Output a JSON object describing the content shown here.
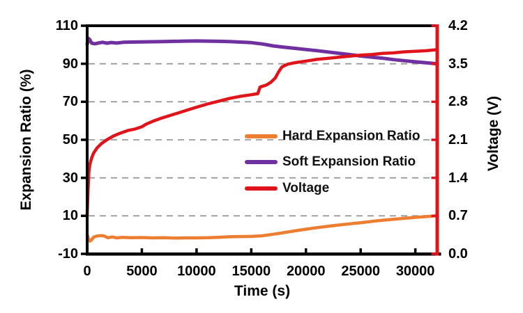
{
  "chart_data": {
    "type": "line",
    "title": "",
    "xlabel": "Time (s)",
    "ylabel_left": "Expansion Ratio (%)",
    "ylabel_right": "Voltage (V)",
    "xlim": [
      0,
      32000
    ],
    "ylim_left": [
      -10,
      110
    ],
    "ylim_right": [
      0,
      4.2
    ],
    "grid": "dashed horizontal",
    "grid_values_left": [
      90,
      70,
      50,
      30,
      10
    ],
    "x_tick_values": [
      0,
      5000,
      10000,
      15000,
      20000,
      25000,
      30000
    ],
    "x_tick_labels": [
      "0",
      "5000",
      "10000",
      "15000",
      "20000",
      "25000",
      "30000"
    ],
    "left_tick_values": [
      110,
      90,
      70,
      50,
      30,
      10,
      -10
    ],
    "left_tick_labels": [
      "110",
      "90",
      "70",
      "50",
      "30",
      "10",
      "-10"
    ],
    "right_tick_values": [
      4.2,
      3.5,
      2.8,
      2.1,
      1.4,
      0.7,
      0.0
    ],
    "right_tick_labels": [
      "4.2",
      "3.5",
      "2.8",
      "2.1",
      "1.4",
      "0.7",
      "0.0"
    ],
    "legend_position": "center-right inside plot",
    "colors": {
      "hard": "#ED7D31",
      "soft": "#7030A0",
      "voltage": "#DF151B",
      "grid": "#999999",
      "axis_left_bottom_top": "#000000",
      "axis_right": "#DF151B",
      "text": "#000000",
      "background": "#FFFFFF"
    },
    "series": [
      {
        "name": "Hard Expansion Ratio",
        "axis": "left",
        "unit": "%",
        "color": "#ED7D31",
        "points": [
          [
            0,
            0.2
          ],
          [
            150,
            -2.6
          ],
          [
            250,
            -3.3
          ],
          [
            400,
            -2.6
          ],
          [
            600,
            -1.2
          ],
          [
            900,
            -0.6
          ],
          [
            1200,
            -0.4
          ],
          [
            1500,
            -0.5
          ],
          [
            1900,
            -1.5
          ],
          [
            2300,
            -1.1
          ],
          [
            2700,
            -1.6
          ],
          [
            3200,
            -1.3
          ],
          [
            4000,
            -1.5
          ],
          [
            5000,
            -1.4
          ],
          [
            6000,
            -1.6
          ],
          [
            7000,
            -1.5
          ],
          [
            8000,
            -1.7
          ],
          [
            9000,
            -1.6
          ],
          [
            10000,
            -1.6
          ],
          [
            11000,
            -1.5
          ],
          [
            12000,
            -1.3
          ],
          [
            13000,
            -1.0
          ],
          [
            14000,
            -0.9
          ],
          [
            15000,
            -0.8
          ],
          [
            16000,
            -0.5
          ],
          [
            17000,
            0.3
          ],
          [
            18000,
            1.2
          ],
          [
            19000,
            2.1
          ],
          [
            20000,
            3.0
          ],
          [
            21000,
            3.8
          ],
          [
            22000,
            4.5
          ],
          [
            23000,
            5.2
          ],
          [
            24000,
            5.8
          ],
          [
            25000,
            6.4
          ],
          [
            26000,
            7.1
          ],
          [
            27000,
            7.7
          ],
          [
            28000,
            8.2
          ],
          [
            29000,
            8.7
          ],
          [
            30000,
            9.2
          ],
          [
            31000,
            9.6
          ],
          [
            32000,
            10.0
          ]
        ]
      },
      {
        "name": "Soft Expansion Ratio",
        "axis": "left",
        "unit": "%",
        "color": "#7030A0",
        "points": [
          [
            0,
            100.2
          ],
          [
            120,
            103.3
          ],
          [
            250,
            102.6
          ],
          [
            400,
            100.9
          ],
          [
            700,
            100.5
          ],
          [
            1000,
            100.9
          ],
          [
            1400,
            101.3
          ],
          [
            1800,
            100.8
          ],
          [
            2200,
            101.2
          ],
          [
            2700,
            100.9
          ],
          [
            3300,
            101.3
          ],
          [
            4000,
            101.4
          ],
          [
            5000,
            101.5
          ],
          [
            6000,
            101.6
          ],
          [
            7000,
            101.7
          ],
          [
            8000,
            101.8
          ],
          [
            9000,
            101.9
          ],
          [
            10000,
            102.0
          ],
          [
            11000,
            101.9
          ],
          [
            12000,
            101.8
          ],
          [
            13000,
            101.7
          ],
          [
            14000,
            101.4
          ],
          [
            15000,
            101.1
          ],
          [
            16000,
            100.4
          ],
          [
            17000,
            99.4
          ],
          [
            18000,
            98.7
          ],
          [
            19000,
            98.1
          ],
          [
            20000,
            97.5
          ],
          [
            21000,
            96.9
          ],
          [
            22000,
            96.2
          ],
          [
            23000,
            95.5
          ],
          [
            24000,
            94.8
          ],
          [
            25000,
            94.1
          ],
          [
            26000,
            93.5
          ],
          [
            27000,
            92.9
          ],
          [
            28000,
            92.2
          ],
          [
            29000,
            91.6
          ],
          [
            30000,
            91.0
          ],
          [
            31000,
            90.5
          ],
          [
            32000,
            90.0
          ]
        ]
      },
      {
        "name": "Voltage",
        "axis": "right",
        "unit": "V",
        "color": "#DF151B",
        "points": [
          [
            0,
            0.72
          ],
          [
            80,
            1.2
          ],
          [
            150,
            1.5
          ],
          [
            250,
            1.65
          ],
          [
            400,
            1.76
          ],
          [
            600,
            1.86
          ],
          [
            900,
            1.95
          ],
          [
            1300,
            2.03
          ],
          [
            1800,
            2.1
          ],
          [
            2400,
            2.17
          ],
          [
            3000,
            2.22
          ],
          [
            3700,
            2.27
          ],
          [
            4400,
            2.3
          ],
          [
            5000,
            2.34
          ],
          [
            5400,
            2.39
          ],
          [
            6000,
            2.44
          ],
          [
            6800,
            2.5
          ],
          [
            7600,
            2.55
          ],
          [
            8400,
            2.6
          ],
          [
            9200,
            2.65
          ],
          [
            10000,
            2.7
          ],
          [
            11000,
            2.76
          ],
          [
            12000,
            2.81
          ],
          [
            13000,
            2.86
          ],
          [
            14000,
            2.9
          ],
          [
            15000,
            2.93
          ],
          [
            15600,
            2.95
          ],
          [
            15800,
            3.07
          ],
          [
            16100,
            3.09
          ],
          [
            16400,
            3.11
          ],
          [
            16800,
            3.16
          ],
          [
            17200,
            3.24
          ],
          [
            17500,
            3.35
          ],
          [
            17800,
            3.44
          ],
          [
            18300,
            3.49
          ],
          [
            19000,
            3.52
          ],
          [
            20000,
            3.55
          ],
          [
            21000,
            3.58
          ],
          [
            22000,
            3.6
          ],
          [
            23000,
            3.62
          ],
          [
            24000,
            3.64
          ],
          [
            25000,
            3.66
          ],
          [
            26000,
            3.67
          ],
          [
            27000,
            3.69
          ],
          [
            28000,
            3.7
          ],
          [
            29000,
            3.72
          ],
          [
            30000,
            3.73
          ],
          [
            31000,
            3.74
          ],
          [
            32000,
            3.76
          ]
        ]
      }
    ]
  }
}
